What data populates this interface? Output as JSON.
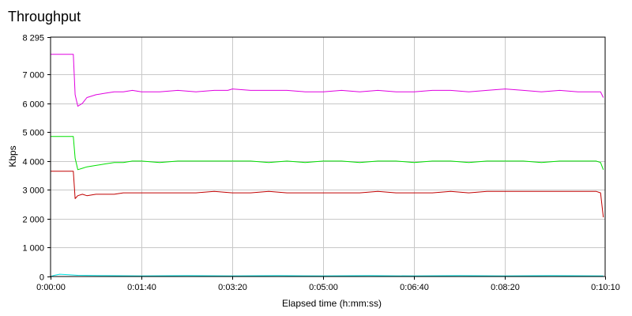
{
  "chart_data": {
    "type": "line",
    "title": "Throughput",
    "xlabel": "Elapsed time (h:mm:ss)",
    "ylabel": "Kbps",
    "xlim": [
      0,
      610
    ],
    "ylim": [
      0,
      8295
    ],
    "x_ticks": [
      {
        "value": 0,
        "label": "0:00:00"
      },
      {
        "value": 100,
        "label": "0:01:40"
      },
      {
        "value": 200,
        "label": "0:03:20"
      },
      {
        "value": 300,
        "label": "0:05:00"
      },
      {
        "value": 400,
        "label": "0:06:40"
      },
      {
        "value": 500,
        "label": "0:08:20"
      },
      {
        "value": 610,
        "label": "0:10:10"
      }
    ],
    "y_ticks": [
      {
        "value": 0,
        "label": "0"
      },
      {
        "value": 1000,
        "label": "1 000"
      },
      {
        "value": 2000,
        "label": "2 000"
      },
      {
        "value": 3000,
        "label": "3 000"
      },
      {
        "value": 4000,
        "label": "4 000"
      },
      {
        "value": 5000,
        "label": "5 000"
      },
      {
        "value": 6000,
        "label": "6 000"
      },
      {
        "value": 7000,
        "label": "7 000"
      },
      {
        "value": 8295,
        "label": "8 295"
      }
    ],
    "grid": true,
    "legend": "none",
    "series": [
      {
        "color": "#e000e0",
        "x": [
          0,
          25,
          27,
          30,
          35,
          40,
          50,
          60,
          70,
          80,
          90,
          100,
          120,
          140,
          160,
          180,
          195,
          200,
          220,
          240,
          260,
          280,
          300,
          320,
          340,
          360,
          380,
          400,
          420,
          440,
          460,
          480,
          500,
          520,
          540,
          560,
          580,
          600,
          605,
          608
        ],
        "values": [
          7700,
          7700,
          6300,
          5900,
          6000,
          6200,
          6300,
          6350,
          6400,
          6400,
          6450,
          6400,
          6400,
          6450,
          6400,
          6450,
          6450,
          6500,
          6450,
          6450,
          6450,
          6400,
          6400,
          6450,
          6400,
          6450,
          6400,
          6400,
          6450,
          6450,
          6400,
          6450,
          6500,
          6450,
          6400,
          6450,
          6400,
          6400,
          6400,
          6200
        ]
      },
      {
        "color": "#00e000",
        "x": [
          0,
          25,
          27,
          30,
          35,
          40,
          50,
          60,
          70,
          80,
          90,
          100,
          120,
          140,
          160,
          180,
          200,
          220,
          240,
          260,
          280,
          300,
          320,
          340,
          360,
          380,
          400,
          420,
          440,
          460,
          480,
          500,
          520,
          540,
          560,
          580,
          600,
          605,
          608
        ],
        "values": [
          4850,
          4850,
          4100,
          3700,
          3750,
          3800,
          3850,
          3900,
          3950,
          3950,
          4000,
          4000,
          3950,
          4000,
          4000,
          4000,
          4000,
          4000,
          3950,
          4000,
          3950,
          4000,
          4000,
          3950,
          4000,
          4000,
          3950,
          4000,
          4000,
          3950,
          4000,
          4000,
          4000,
          3950,
          4000,
          4000,
          4000,
          3950,
          3700
        ]
      },
      {
        "color": "#c00000",
        "x": [
          0,
          25,
          27,
          30,
          35,
          40,
          50,
          60,
          70,
          80,
          90,
          100,
          120,
          140,
          160,
          180,
          200,
          220,
          240,
          260,
          280,
          300,
          320,
          340,
          360,
          380,
          400,
          420,
          440,
          460,
          480,
          500,
          520,
          540,
          560,
          580,
          600,
          605,
          608
        ],
        "values": [
          3650,
          3650,
          2700,
          2800,
          2850,
          2800,
          2850,
          2850,
          2850,
          2900,
          2900,
          2900,
          2900,
          2900,
          2900,
          2950,
          2900,
          2900,
          2950,
          2900,
          2900,
          2900,
          2900,
          2900,
          2950,
          2900,
          2900,
          2900,
          2950,
          2900,
          2950,
          2950,
          2950,
          2950,
          2950,
          2950,
          2950,
          2900,
          2050
        ]
      },
      {
        "color": "#00e0e0",
        "x": [
          0,
          5,
          10,
          20,
          30,
          60,
          100,
          150,
          200,
          250,
          300,
          350,
          400,
          450,
          500,
          550,
          608
        ],
        "values": [
          0,
          50,
          80,
          60,
          40,
          30,
          20,
          30,
          20,
          30,
          20,
          30,
          20,
          30,
          20,
          30,
          20
        ]
      }
    ]
  }
}
